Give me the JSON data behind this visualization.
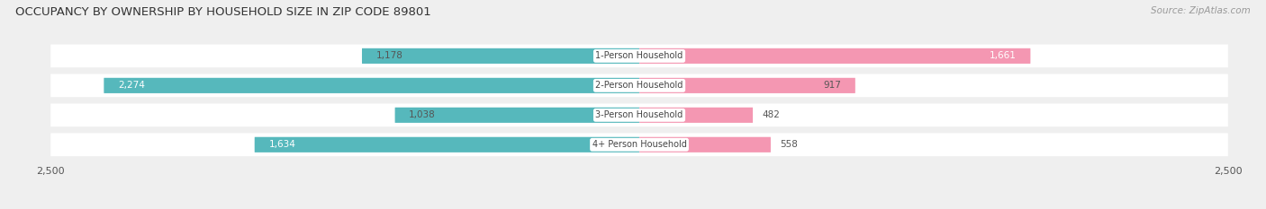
{
  "title": "OCCUPANCY BY OWNERSHIP BY HOUSEHOLD SIZE IN ZIP CODE 89801",
  "source": "Source: ZipAtlas.com",
  "categories": [
    "1-Person Household",
    "2-Person Household",
    "3-Person Household",
    "4+ Person Household"
  ],
  "owner_values": [
    1178,
    2274,
    1038,
    1634
  ],
  "renter_values": [
    1661,
    917,
    482,
    558
  ],
  "owner_color": "#56b8bc",
  "renter_color": "#f497b2",
  "xlim": 2500,
  "background_color": "#efefef",
  "row_bg_color": "#e2e2e2",
  "bar_bg_color": "#ffffff",
  "title_fontsize": 9.5,
  "source_fontsize": 7.5,
  "tick_fontsize": 8,
  "value_fontsize": 7.5,
  "category_fontsize": 7.0
}
